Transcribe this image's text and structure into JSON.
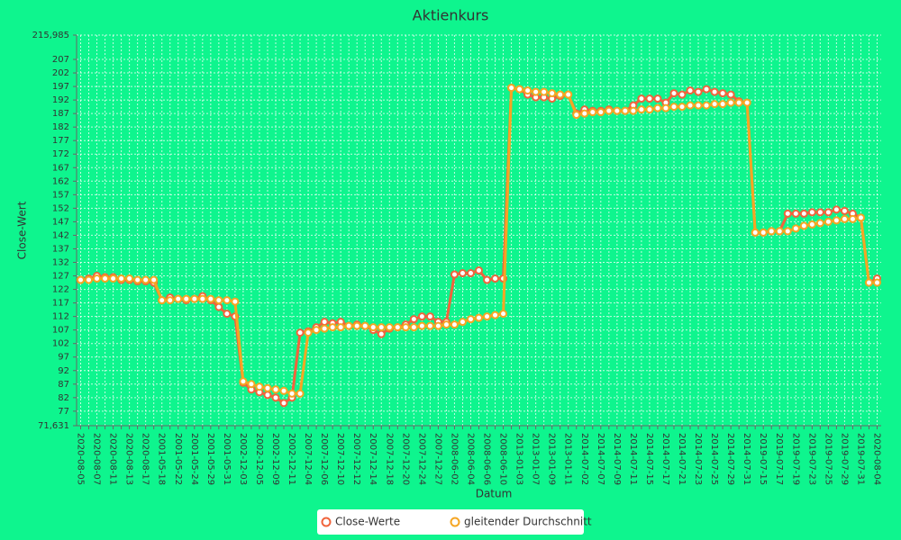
{
  "chart_data": {
    "type": "line",
    "title": "Aktienkurs",
    "x_label": "Datum",
    "y_label": "Close-Wert",
    "categories": [
      "2020-08-05",
      null,
      "2020-08-07",
      null,
      "2020-08-11",
      null,
      "2020-08-13",
      null,
      "2020-08-17",
      null,
      "2001-05-18",
      null,
      "2001-05-22",
      null,
      "2001-05-24",
      null,
      "2001-05-29",
      null,
      "2001-05-31",
      null,
      "2002-12-03",
      null,
      "2002-12-05",
      null,
      "2002-12-09",
      null,
      "2002-12-11",
      null,
      "2007-12-04",
      null,
      "2007-12-06",
      null,
      "2007-12-10",
      null,
      "2007-12-12",
      null,
      "2007-12-14",
      null,
      "2007-12-18",
      null,
      "2007-12-20",
      null,
      "2007-12-24",
      null,
      "2007-12-27",
      null,
      "2008-06-02",
      null,
      "2008-06-04",
      null,
      "2008-06-06",
      null,
      "2008-06-10",
      null,
      "2013-01-03",
      null,
      "2013-01-07",
      null,
      "2013-01-09",
      null,
      "2013-01-11",
      null,
      "2014-07-02",
      null,
      "2014-07-07",
      null,
      "2014-07-09",
      null,
      "2014-07-11",
      null,
      "2014-07-15",
      null,
      "2014-07-17",
      null,
      "2014-07-21",
      null,
      "2014-07-23",
      null,
      "2014-07-25",
      null,
      "2014-07-29",
      null,
      "2014-07-31",
      null,
      "2019-07-15",
      null,
      "2019-07-17",
      null,
      "2019-07-19",
      null,
      "2019-07-23",
      null,
      "2019-07-25",
      null,
      "2019-07-29",
      null,
      "2019-07-31",
      null,
      "2020-08-04"
    ],
    "series": [
      {
        "name": "Close-Werte",
        "color": "#f0643c",
        "values": [
          125.5,
          126,
          127,
          126.5,
          126.5,
          125.5,
          125.5,
          125,
          125,
          124.5,
          118,
          119,
          118.5,
          118,
          118.5,
          119.5,
          118,
          115.5,
          113,
          112,
          87.5,
          85,
          84,
          83,
          82,
          80,
          82,
          106,
          106.5,
          108,
          110,
          109.5,
          110,
          108.5,
          109,
          108.5,
          107,
          105.5,
          107.5,
          108,
          109,
          111,
          112,
          112,
          110,
          110,
          127.5,
          128,
          128,
          129,
          125.5,
          126,
          126,
          196.5,
          196,
          194,
          193,
          193,
          192.5,
          193.5,
          194,
          187,
          188.5,
          188,
          188,
          188.5,
          188,
          188,
          190,
          192.5,
          192.5,
          192.5,
          191,
          194.5,
          194,
          195.5,
          195,
          196,
          195,
          194.5,
          194,
          191.5,
          191,
          143,
          143,
          143.5,
          143.5,
          150,
          150,
          150,
          150.5,
          150.5,
          150.5,
          151.5,
          151,
          150,
          148.5,
          124.5,
          126
        ]
      },
      {
        "name": "gleitender Durchschnitt",
        "color": "#f5a623",
        "values": [
          125.5,
          125.5,
          126,
          126,
          126,
          126,
          126,
          125.5,
          125.5,
          125.5,
          118,
          118,
          118.5,
          118.5,
          118.5,
          118.5,
          118.5,
          118,
          118,
          117.5,
          88,
          87,
          86,
          85.5,
          85,
          84.5,
          83.5,
          83.5,
          106,
          107,
          107.5,
          108,
          108,
          108.5,
          108.5,
          108.5,
          108,
          108,
          108,
          108,
          108,
          108,
          108.5,
          108.5,
          108.5,
          109,
          109,
          110,
          111,
          111.5,
          112,
          112.5,
          113,
          196.5,
          196,
          195.5,
          195,
          195,
          194.5,
          194,
          194,
          186.5,
          187,
          187.5,
          187.5,
          188,
          188,
          188,
          188,
          188.5,
          188.5,
          189,
          189,
          189.5,
          189.5,
          190,
          190,
          190,
          190.5,
          190.5,
          191,
          191,
          191,
          143,
          143,
          143.5,
          143.5,
          143.5,
          144.5,
          145.5,
          146,
          146.5,
          147,
          147.5,
          148,
          148,
          148.5,
          124.5,
          124.5
        ]
      }
    ],
    "ylim": [
      71.631,
      215.985
    ],
    "yticks": [
      {
        "value": 71.631,
        "label": "71,631"
      },
      77,
      82,
      87,
      92,
      97,
      102,
      107,
      112,
      117,
      122,
      127,
      132,
      137,
      142,
      147,
      152,
      157,
      162,
      167,
      172,
      177,
      182,
      187,
      192,
      197,
      202,
      207,
      {
        "value": 215.985,
        "label": "215,985"
      }
    ],
    "grid": true,
    "legend": "bottom"
  }
}
